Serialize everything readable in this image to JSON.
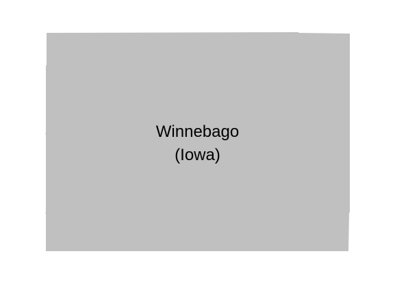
{
  "map": {
    "county_name": "Winnebago",
    "state_label": "(Iowa)",
    "fill_color": "#c0c0c0",
    "background_color": "#ffffff",
    "text_color": "#000000"
  }
}
